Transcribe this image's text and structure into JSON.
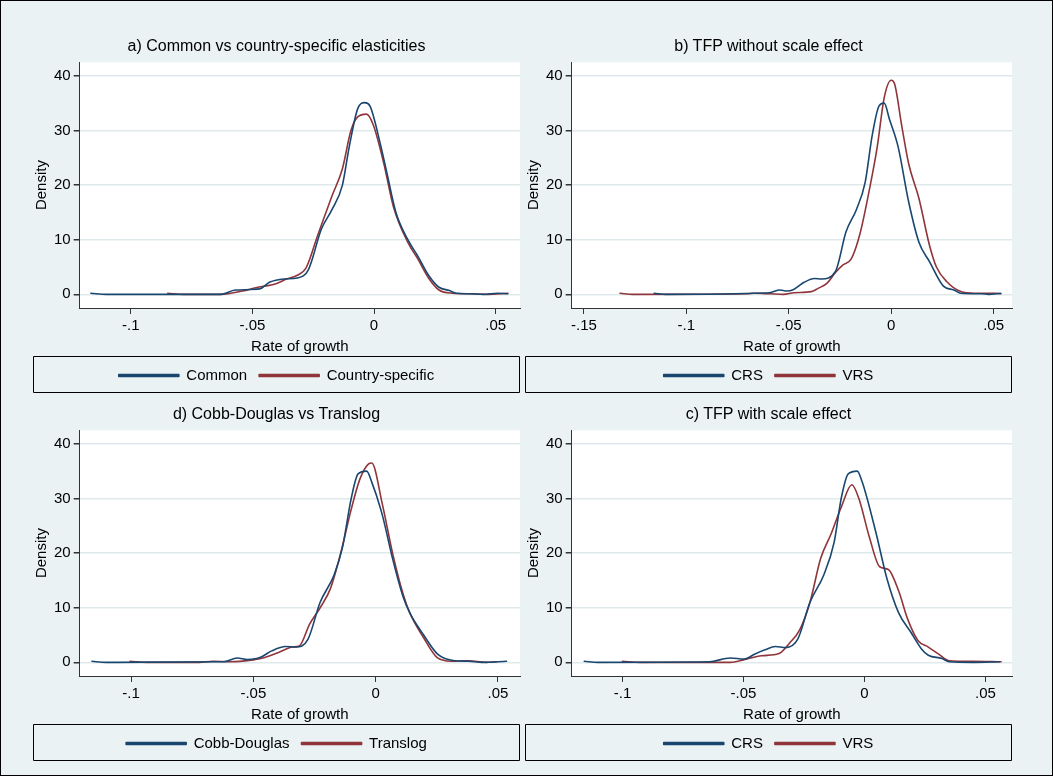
{
  "chart_data": [
    {
      "type": "line",
      "title": "a) Common vs country-specific elasticities",
      "xlabel": "Rate of growth",
      "ylabel": "Density",
      "xlim": [
        -0.121,
        0.06
      ],
      "xticks": [
        {
          "value": -0.1,
          "label": "-.1"
        },
        {
          "value": -0.05,
          "label": "-.05"
        },
        {
          "value": 0,
          "label": "0"
        },
        {
          "value": 0.05,
          "label": ".05"
        }
      ],
      "ylim": [
        -2.5,
        42.5
      ],
      "yticks": [
        0,
        10,
        20,
        30,
        40
      ],
      "grid": "y",
      "legend": "bottom",
      "marker": "none",
      "line_style": "solid",
      "series": [
        {
          "name": "Common",
          "color": "#1a476f",
          "x": [
            -0.1164,
            -0.11,
            -0.063,
            -0.057,
            -0.047,
            -0.043,
            -0.037,
            -0.0315,
            -0.027,
            -0.0216,
            -0.0173,
            -0.013,
            -0.0102,
            -0.0067,
            -0.0038,
            -0.0017,
            0.0026,
            0.0054,
            0.009,
            0.0139,
            0.018,
            0.0224,
            0.0267,
            0.031,
            0.0338,
            0.0395,
            0.045,
            0.0507,
            0.055
          ],
          "values": [
            0.2,
            0,
            0,
            0.8,
            1,
            2.2,
            2.8,
            3,
            4.5,
            12,
            15.5,
            20,
            27,
            34,
            35.1,
            34.5,
            27.5,
            22,
            15,
            10,
            7,
            3.5,
            1.3,
            0.7,
            0.2,
            0.1,
            0,
            0.2,
            0.1
          ]
        },
        {
          "name": "Country-specific",
          "color": "#90353b",
          "x": [
            -0.0848,
            -0.0784,
            -0.063,
            -0.054,
            -0.0486,
            -0.04,
            -0.036,
            -0.0315,
            -0.028,
            -0.023,
            -0.0173,
            -0.013,
            -0.0095,
            -0.0067,
            -0.0031,
            -0.0003,
            0.004,
            0.008,
            0.0139,
            0.018,
            0.0224,
            0.0267,
            0.0324,
            0.0395,
            0.0466,
            0.055
          ],
          "values": [
            0.2,
            0,
            0,
            0.6,
            1.2,
            2,
            2.8,
            3.5,
            4.8,
            11,
            18,
            23,
            30,
            32.5,
            33,
            31,
            24,
            16,
            9.5,
            6.5,
            3,
            0.8,
            0.2,
            0.1,
            0,
            0.2
          ]
        }
      ]
    },
    {
      "type": "line",
      "title": "b) TFP without scale effect",
      "xlabel": "Rate of growth",
      "ylabel": "Density",
      "xlim": [
        -0.156,
        0.059
      ],
      "xticks": [
        {
          "value": -0.15,
          "label": "-.15"
        },
        {
          "value": -0.1,
          "label": "-.1"
        },
        {
          "value": -0.05,
          "label": "-.05"
        },
        {
          "value": 0,
          "label": "0"
        },
        {
          "value": 0.05,
          "label": ".05"
        }
      ],
      "ylim": [
        -2.5,
        42.5
      ],
      "yticks": [
        0,
        10,
        20,
        30,
        40
      ],
      "grid": "y",
      "legend": "bottom",
      "marker": "none",
      "line_style": "solid",
      "series": [
        {
          "name": "CRS",
          "color": "#1a476f",
          "x": [
            -0.1157,
            -0.11,
            -0.0594,
            -0.0543,
            -0.051,
            -0.0476,
            -0.0425,
            -0.0374,
            -0.034,
            -0.0272,
            -0.022,
            -0.017,
            -0.0127,
            -0.0093,
            -0.0059,
            -0.0034,
            -0.0008,
            0.0034,
            0.0085,
            0.0136,
            0.0187,
            0.0255,
            0.0306,
            0.034,
            0.0441,
            0.0475,
            0.0535
          ],
          "values": [
            0.2,
            0,
            0.3,
            0.8,
            0.6,
            0.9,
            2.2,
            2.9,
            2.8,
            4.2,
            11.5,
            15.5,
            20.5,
            29,
            34.5,
            35,
            32,
            27,
            17,
            9.5,
            6,
            1.5,
            0.8,
            0.2,
            0.1,
            0,
            0.2
          ]
        },
        {
          "name": "VRS",
          "color": "#90353b",
          "x": [
            -0.1324,
            -0.126,
            -0.0704,
            -0.067,
            -0.0594,
            -0.0526,
            -0.0475,
            -0.039,
            -0.0357,
            -0.0314,
            -0.0272,
            -0.0238,
            -0.0195,
            -0.0153,
            -0.0102,
            -0.0068,
            -0.0034,
            0,
            0.0017,
            0.0051,
            0.0085,
            0.0136,
            0.0187,
            0.0221,
            0.0272,
            0.034,
            0.0407,
            0.0509,
            0.0535
          ],
          "values": [
            0.2,
            0,
            0.1,
            0.2,
            0.1,
            0,
            0.3,
            0.5,
            1.1,
            2,
            4,
            5.3,
            6.5,
            11,
            20,
            27,
            36,
            39.2,
            38.5,
            31,
            24,
            17.5,
            9,
            5,
            2.3,
            0.5,
            0.2,
            0.2,
            0.1
          ]
        }
      ]
    },
    {
      "type": "line",
      "title": "d) Cobb-Douglas vs Translog",
      "xlabel": "Rate of growth",
      "ylabel": "Density",
      "xlim": [
        -0.121,
        0.059
      ],
      "xticks": [
        {
          "value": -0.1,
          "label": "-.1"
        },
        {
          "value": -0.05,
          "label": "-.05"
        },
        {
          "value": 0,
          "label": "0"
        },
        {
          "value": 0.05,
          "label": ".05"
        }
      ],
      "ylim": [
        -2.5,
        42.5
      ],
      "yticks": [
        0,
        10,
        20,
        30,
        40
      ],
      "grid": "y",
      "legend": "bottom",
      "marker": "none",
      "line_style": "solid",
      "series": [
        {
          "name": "Cobb-Douglas",
          "color": "#1a476f",
          "x": [
            -0.116,
            -0.1103,
            -0.0623,
            -0.0566,
            -0.0524,
            -0.0468,
            -0.0425,
            -0.0369,
            -0.0326,
            -0.0277,
            -0.0227,
            -0.017,
            -0.0136,
            -0.01,
            -0.0072,
            -0.0037,
            -0.0016,
            0.0027,
            0.0069,
            0.0112,
            0.014,
            0.0196,
            0.0253,
            0.0323,
            0.038,
            0.0436,
            0.0535
          ],
          "values": [
            0.2,
            0,
            0.1,
            0.8,
            0.5,
            1,
            2.1,
            2.9,
            2.8,
            4.2,
            11,
            16,
            21,
            30,
            34.5,
            35,
            33,
            27,
            19,
            12,
            9,
            5,
            1.5,
            0.3,
            0.2,
            0,
            0.2
          ]
        },
        {
          "name": "Translog",
          "color": "#90353b",
          "x": [
            -0.1004,
            -0.0934,
            -0.0722,
            -0.0665,
            -0.0595,
            -0.051,
            -0.0453,
            -0.0397,
            -0.034,
            -0.0312,
            -0.027,
            -0.0227,
            -0.0185,
            -0.0143,
            -0.01,
            -0.0065,
            -0.003,
            -0.0016,
            0.0027,
            0.0069,
            0.0112,
            0.014,
            0.0196,
            0.0253,
            0.0309,
            0.038,
            0.0451,
            0.0494
          ],
          "values": [
            0.2,
            0,
            0,
            0.2,
            0.1,
            0.4,
            0.9,
            1.8,
            2.8,
            3,
            7,
            10,
            13.5,
            20,
            28,
            33.5,
            36.3,
            36.5,
            29,
            20,
            12.5,
            9,
            4.5,
            0.8,
            0.2,
            0.3,
            0,
            0.1
          ]
        }
      ]
    },
    {
      "type": "line",
      "title": "c) TFP with scale effect",
      "xlabel": "Rate of growth",
      "ylabel": "Density",
      "xlim": [
        -0.121,
        0.061
      ],
      "xticks": [
        {
          "value": -0.1,
          "label": "-.1"
        },
        {
          "value": -0.05,
          "label": "-.05"
        },
        {
          "value": 0,
          "label": "0"
        },
        {
          "value": 0.05,
          "label": ".05"
        }
      ],
      "ylim": [
        -2.5,
        42.5
      ],
      "yticks": [
        0,
        10,
        20,
        30,
        40
      ],
      "grid": "y",
      "legend": "bottom",
      "marker": "none",
      "line_style": "solid",
      "series": [
        {
          "name": "CRS",
          "color": "#1a476f",
          "x": [
            -0.1158,
            -0.11,
            -0.0641,
            -0.0555,
            -0.0497,
            -0.0454,
            -0.0411,
            -0.0368,
            -0.0326,
            -0.0275,
            -0.0225,
            -0.0168,
            -0.0125,
            -0.0096,
            -0.0067,
            -0.003,
            -0.0009,
            0.0049,
            0.0092,
            0.0142,
            0.0192,
            0.0235,
            0.0264,
            0.0321,
            0.035,
            0.045,
            0.0558
          ],
          "values": [
            0.2,
            0,
            0.1,
            0.8,
            0.6,
            1.5,
            2.3,
            2.9,
            2.7,
            4.3,
            11,
            16,
            22,
            30,
            34.5,
            35,
            33,
            23.5,
            15.5,
            9,
            5.5,
            2.5,
            1.3,
            0.7,
            0.1,
            0,
            0.1
          ]
        },
        {
          "name": "VRS",
          "color": "#90353b",
          "x": [
            -0.1,
            -0.0928,
            -0.0555,
            -0.0497,
            -0.0425,
            -0.0353,
            -0.031,
            -0.0267,
            -0.0225,
            -0.0181,
            -0.0138,
            -0.0095,
            -0.0052,
            -0.0023,
            0.002,
            0.0063,
            0.0099,
            0.0142,
            0.0178,
            0.0221,
            0.0264,
            0.0307,
            0.035,
            0.045,
            0.0565
          ],
          "values": [
            0.2,
            0,
            0,
            0.5,
            1.2,
            1.6,
            3.5,
            6,
            11,
            19,
            23.5,
            28.5,
            32.5,
            30,
            23,
            17.5,
            17,
            13,
            8,
            4,
            2.8,
            1.5,
            0.3,
            0.2,
            0.1
          ]
        }
      ]
    }
  ]
}
